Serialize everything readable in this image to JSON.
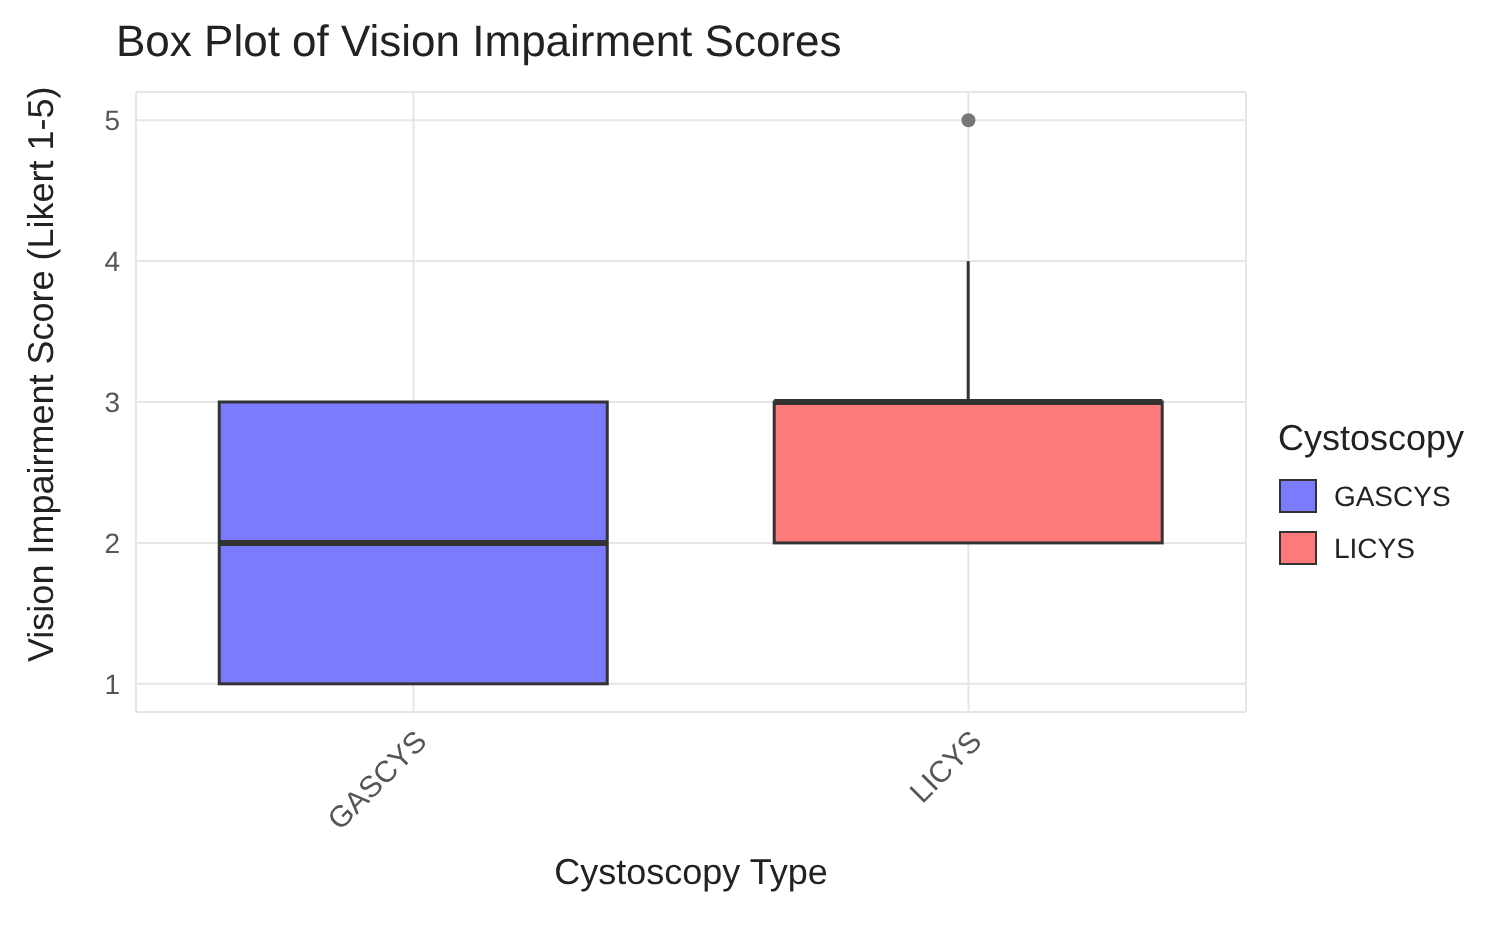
{
  "chart_data": {
    "type": "box",
    "title": "Box Plot of Vision Impairment Scores",
    "xlabel": "Cystoscopy Type",
    "ylabel": "Vision Impairment Score (Likert 1-5)",
    "legend_title": "Cystoscopy",
    "categories": [
      "GASCYS",
      "LICYS"
    ],
    "series": [
      {
        "name": "GASCYS",
        "color": "#7b7bff",
        "boxes": [
          {
            "low": 1,
            "q1": 1,
            "median": 2,
            "q3": 3,
            "high": 3
          },
          null
        ]
      },
      {
        "name": "LICYS",
        "color": "#ff7b7b",
        "boxes": [
          null,
          {
            "low": 2,
            "q1": 2,
            "median": 3,
            "q3": 3,
            "high": 4,
            "outliers": [
              5
            ]
          }
        ]
      }
    ],
    "ylim": [
      0.8,
      5.2
    ],
    "yticks": [
      1,
      2,
      3,
      4,
      5
    ],
    "grid": true,
    "legend": "right"
  }
}
